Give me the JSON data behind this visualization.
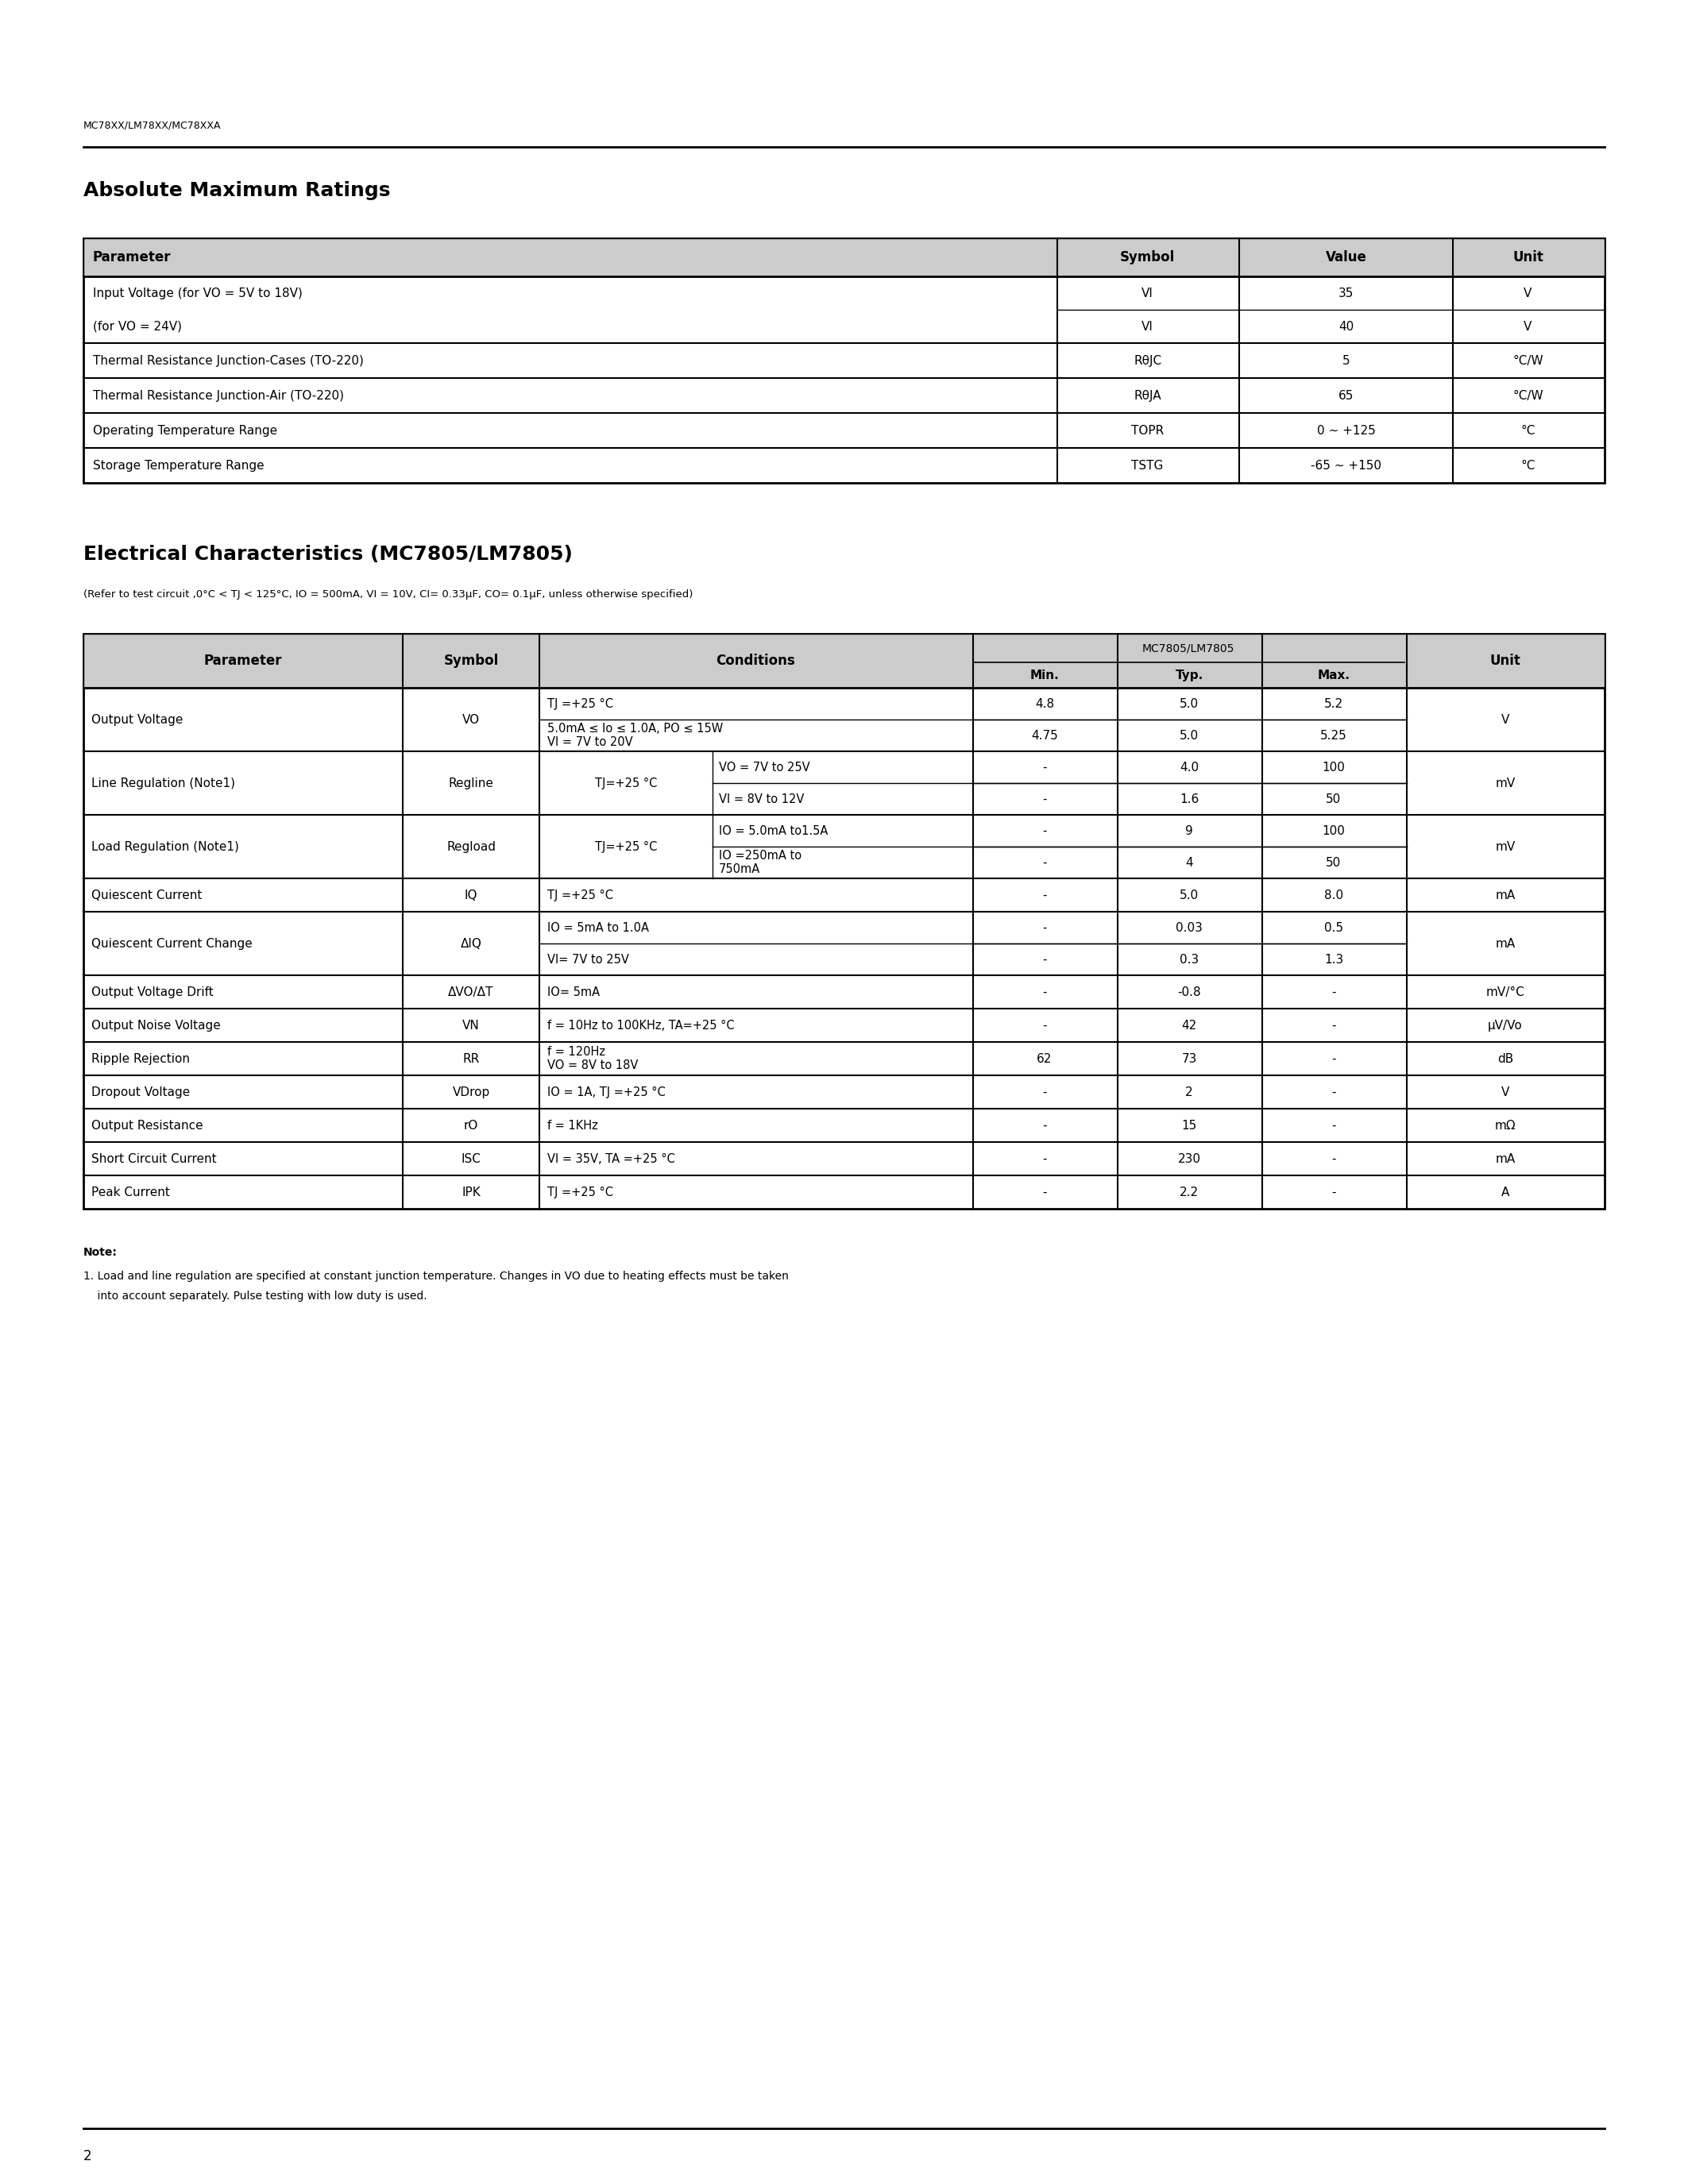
{
  "page_header": "MC78XX/LM78XX/MC78XXA",
  "page_number": "2",
  "bg_color": "#ffffff",
  "text_color": "#000000",
  "section1_title": "Absolute Maximum Ratings",
  "section2_title": "Electrical Characteristics (MC7805/LM7805)",
  "section2_subtitle": "(Refer to test circuit ,0°C < TJ < 125°C, IO = 500mA, VI = 10V, CI= 0.33μF, CO= 0.1μF, unless otherwise specified)",
  "abs_max_headers": [
    "Parameter",
    "Symbol",
    "Value",
    "Unit"
  ],
  "abs_max_rows": [
    [
      "Input Voltage (for VO = 5V to 18V)",
      "VI",
      "35",
      "V"
    ],
    [
      "(for VO = 24V)",
      "VI",
      "40",
      "V"
    ],
    [
      "Thermal Resistance Junction-Cases (TO-220)",
      "RθJC",
      "5",
      "°C/W"
    ],
    [
      "Thermal Resistance Junction-Air (TO-220)",
      "RθJA",
      "65",
      "°C/W"
    ],
    [
      "Operating Temperature Range",
      "TOPR",
      "0 ~ +125",
      "°C"
    ],
    [
      "Storage Temperature Range",
      "TSTG",
      "-65 ~ +150",
      "°C"
    ]
  ],
  "elec_char_rows": [
    {
      "param": "Output Voltage",
      "symbol": "VO",
      "conditions": [
        "TJ =+25 °C",
        "5.0mA ≤ Io ≤ 1.0A, PO ≤ 15W\nVI = 7V to 20V"
      ],
      "min": [
        "4.8",
        "4.75"
      ],
      "typ": [
        "5.0",
        "5.0"
      ],
      "max": [
        "5.2",
        "5.25"
      ],
      "unit": "V",
      "sub_rows": 2,
      "has_shared": false
    },
    {
      "param": "Line Regulation (Note1)",
      "symbol": "Regline",
      "conditions_shared": "TJ=+25 °C",
      "conditions": [
        "VO = 7V to 25V",
        "VI = 8V to 12V"
      ],
      "min": [
        "-",
        "-"
      ],
      "typ": [
        "4.0",
        "1.6"
      ],
      "max": [
        "100",
        "50"
      ],
      "unit": "mV",
      "sub_rows": 2,
      "has_shared": true
    },
    {
      "param": "Load Regulation (Note1)",
      "symbol": "Regload",
      "conditions_shared": "TJ=+25 °C",
      "conditions": [
        "IO = 5.0mA to1.5A",
        "IO =250mA to\n750mA"
      ],
      "min": [
        "-",
        "-"
      ],
      "typ": [
        "9",
        "4"
      ],
      "max": [
        "100",
        "50"
      ],
      "unit": "mV",
      "sub_rows": 2,
      "has_shared": true
    },
    {
      "param": "Quiescent Current",
      "symbol": "IQ",
      "conditions": [
        "TJ =+25 °C"
      ],
      "min": [
        "-"
      ],
      "typ": [
        "5.0"
      ],
      "max": [
        "8.0"
      ],
      "unit": "mA",
      "sub_rows": 1,
      "has_shared": false
    },
    {
      "param": "Quiescent Current Change",
      "symbol": "ΔIQ",
      "conditions": [
        "IO = 5mA to 1.0A",
        "VI= 7V to 25V"
      ],
      "min": [
        "-",
        "-"
      ],
      "typ": [
        "0.03",
        "0.3"
      ],
      "max": [
        "0.5",
        "1.3"
      ],
      "unit": "mA",
      "sub_rows": 2,
      "has_shared": false
    },
    {
      "param": "Output Voltage Drift",
      "symbol": "ΔVO/ΔT",
      "conditions": [
        "IO= 5mA"
      ],
      "min": [
        "-"
      ],
      "typ": [
        "-0.8"
      ],
      "max": [
        "-"
      ],
      "unit": "mV/°C",
      "sub_rows": 1,
      "has_shared": false
    },
    {
      "param": "Output Noise Voltage",
      "symbol": "VN",
      "conditions": [
        "f = 10Hz to 100KHz, TA=+25 °C"
      ],
      "min": [
        "-"
      ],
      "typ": [
        "42"
      ],
      "max": [
        "-"
      ],
      "unit": "μV/Vo",
      "sub_rows": 1,
      "has_shared": false
    },
    {
      "param": "Ripple Rejection",
      "symbol": "RR",
      "conditions": [
        "f = 120Hz\nVO = 8V to 18V"
      ],
      "min": [
        "62"
      ],
      "typ": [
        "73"
      ],
      "max": [
        "-"
      ],
      "unit": "dB",
      "sub_rows": 1,
      "has_shared": false
    },
    {
      "param": "Dropout Voltage",
      "symbol": "VDrop",
      "conditions": [
        "IO = 1A, TJ =+25 °C"
      ],
      "min": [
        "-"
      ],
      "typ": [
        "2"
      ],
      "max": [
        "-"
      ],
      "unit": "V",
      "sub_rows": 1,
      "has_shared": false
    },
    {
      "param": "Output Resistance",
      "symbol": "rO",
      "conditions": [
        "f = 1KHz"
      ],
      "min": [
        "-"
      ],
      "typ": [
        "15"
      ],
      "max": [
        "-"
      ],
      "unit": "mΩ",
      "sub_rows": 1,
      "has_shared": false
    },
    {
      "param": "Short Circuit Current",
      "symbol": "ISC",
      "conditions": [
        "VI = 35V, TA =+25 °C"
      ],
      "min": [
        "-"
      ],
      "typ": [
        "230"
      ],
      "max": [
        "-"
      ],
      "unit": "mA",
      "sub_rows": 1,
      "has_shared": false
    },
    {
      "param": "Peak Current",
      "symbol": "IPK",
      "conditions": [
        "TJ =+25 °C"
      ],
      "min": [
        "-"
      ],
      "typ": [
        "2.2"
      ],
      "max": [
        "-"
      ],
      "unit": "A",
      "sub_rows": 1,
      "has_shared": false
    }
  ],
  "note_title": "Note:",
  "note_line1": "1. Load and line regulation are specified at constant junction temperature. Changes in VO due to heating effects must be taken",
  "note_line2": "    into account separately. Pulse testing with low duty is used."
}
